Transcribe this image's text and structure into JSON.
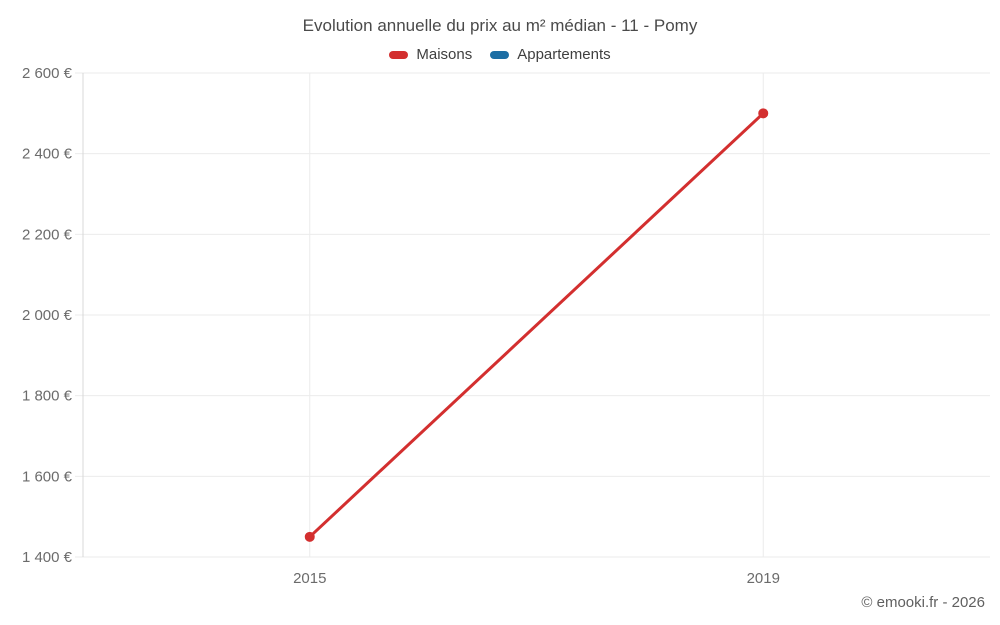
{
  "title": "Evolution annuelle du prix au m² médian - 11 - Pomy",
  "footer": {
    "copyright": "© emooki.fr - 2026"
  },
  "colors": {
    "grid": "#ebebeb",
    "axis": "#d8d8d8",
    "axis_text": "#6b6b6b",
    "title_text": "#4a4a4a",
    "maisons_red": "#d32f2f",
    "appartements_blue": "#1c6ea4"
  },
  "chart_data": {
    "type": "line",
    "categories": [
      "2015",
      "2019"
    ],
    "series": [
      {
        "name": "Maisons",
        "color": "#d32f2f",
        "values": [
          1450,
          2500
        ]
      },
      {
        "name": "Appartements",
        "color": "#1c6ea4",
        "values": []
      }
    ],
    "title": "Evolution annuelle du prix au m² médian - 11 - Pomy",
    "xlabel": "",
    "ylabel": "",
    "ylim": [
      1400,
      2600
    ],
    "ytick_values": [
      1400,
      1600,
      1800,
      2000,
      2200,
      2400,
      2600
    ],
    "ytick_labels": [
      "1 400 €",
      "1 600 €",
      "1 800 €",
      "2 000 €",
      "2 200 €",
      "2 400 €",
      "2 600 €"
    ],
    "grid": true,
    "legend_position": "top"
  }
}
